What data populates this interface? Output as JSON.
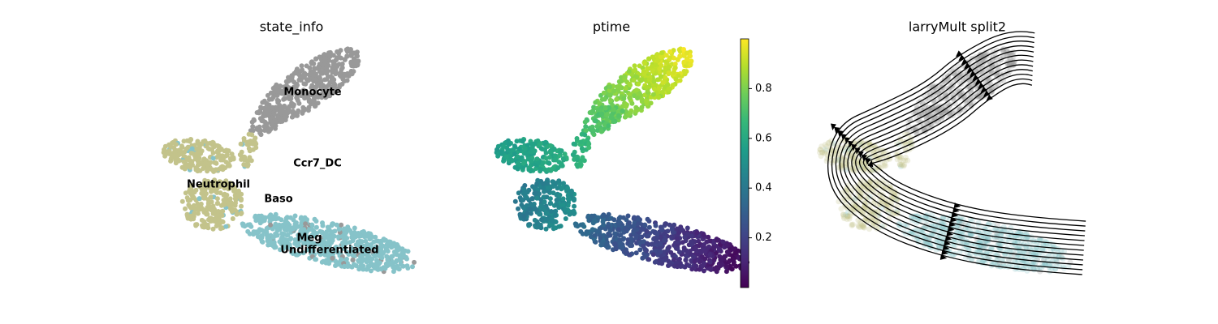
{
  "chart_data": [
    {
      "type": "scatter",
      "title": "state_info",
      "series": [
        {
          "name": "Monocyte",
          "color": "#999999"
        },
        {
          "name": "Ccr7_DC",
          "color": "#c7a6d8"
        },
        {
          "name": "Neutrophil",
          "color": "#c3c38b"
        },
        {
          "name": "Baso",
          "color": "#e6a070"
        },
        {
          "name": "Meg",
          "color": "#d08080"
        },
        {
          "name": "Undifferentiated",
          "color": "#86c3c9"
        }
      ]
    },
    {
      "type": "scatter",
      "title": "ptime",
      "colormap": "viridis",
      "ylim": [
        0,
        1
      ],
      "yticks": [
        0.2,
        0.4,
        0.6,
        0.8
      ]
    },
    {
      "type": "stream",
      "title": "larryMult split2"
    }
  ]
}
